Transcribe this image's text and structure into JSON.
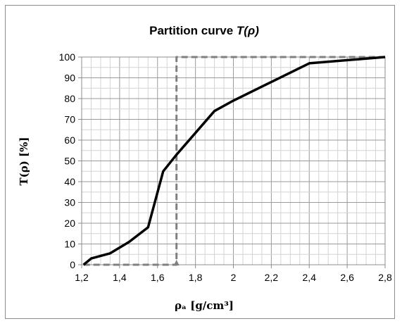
{
  "chart_data": {
    "type": "line",
    "title": "Partition curve",
    "title_symbol": "T(ρ)",
    "xlabel": "ρₐ [g/cm³]",
    "ylabel": "T(ρ) [%]",
    "xlim": [
      1.2,
      2.8
    ],
    "ylim": [
      0,
      100
    ],
    "x_tick_labels": [
      "1,2",
      "1,4",
      "1,6",
      "1,8",
      "2",
      "2,2",
      "2,4",
      "2,6",
      "2,8"
    ],
    "y_tick_labels": [
      "0",
      "10",
      "20",
      "30",
      "40",
      "50",
      "60",
      "70",
      "80",
      "90",
      "100"
    ],
    "grid": true,
    "series": [
      {
        "x": [
          1.21,
          1.25,
          1.35,
          1.45,
          1.55,
          1.63,
          1.7,
          1.9,
          2.0,
          2.2,
          2.4,
          2.8
        ],
        "y": [
          0,
          3,
          5.5,
          11,
          18,
          45,
          53,
          74,
          79,
          88,
          97,
          100
        ],
        "color": "#000000",
        "style": "solid"
      },
      {
        "x": [
          1.21,
          1.7,
          1.7,
          2.8
        ],
        "y": [
          0,
          0,
          100,
          100
        ],
        "color": "#808080",
        "style": "dashed"
      }
    ]
  }
}
